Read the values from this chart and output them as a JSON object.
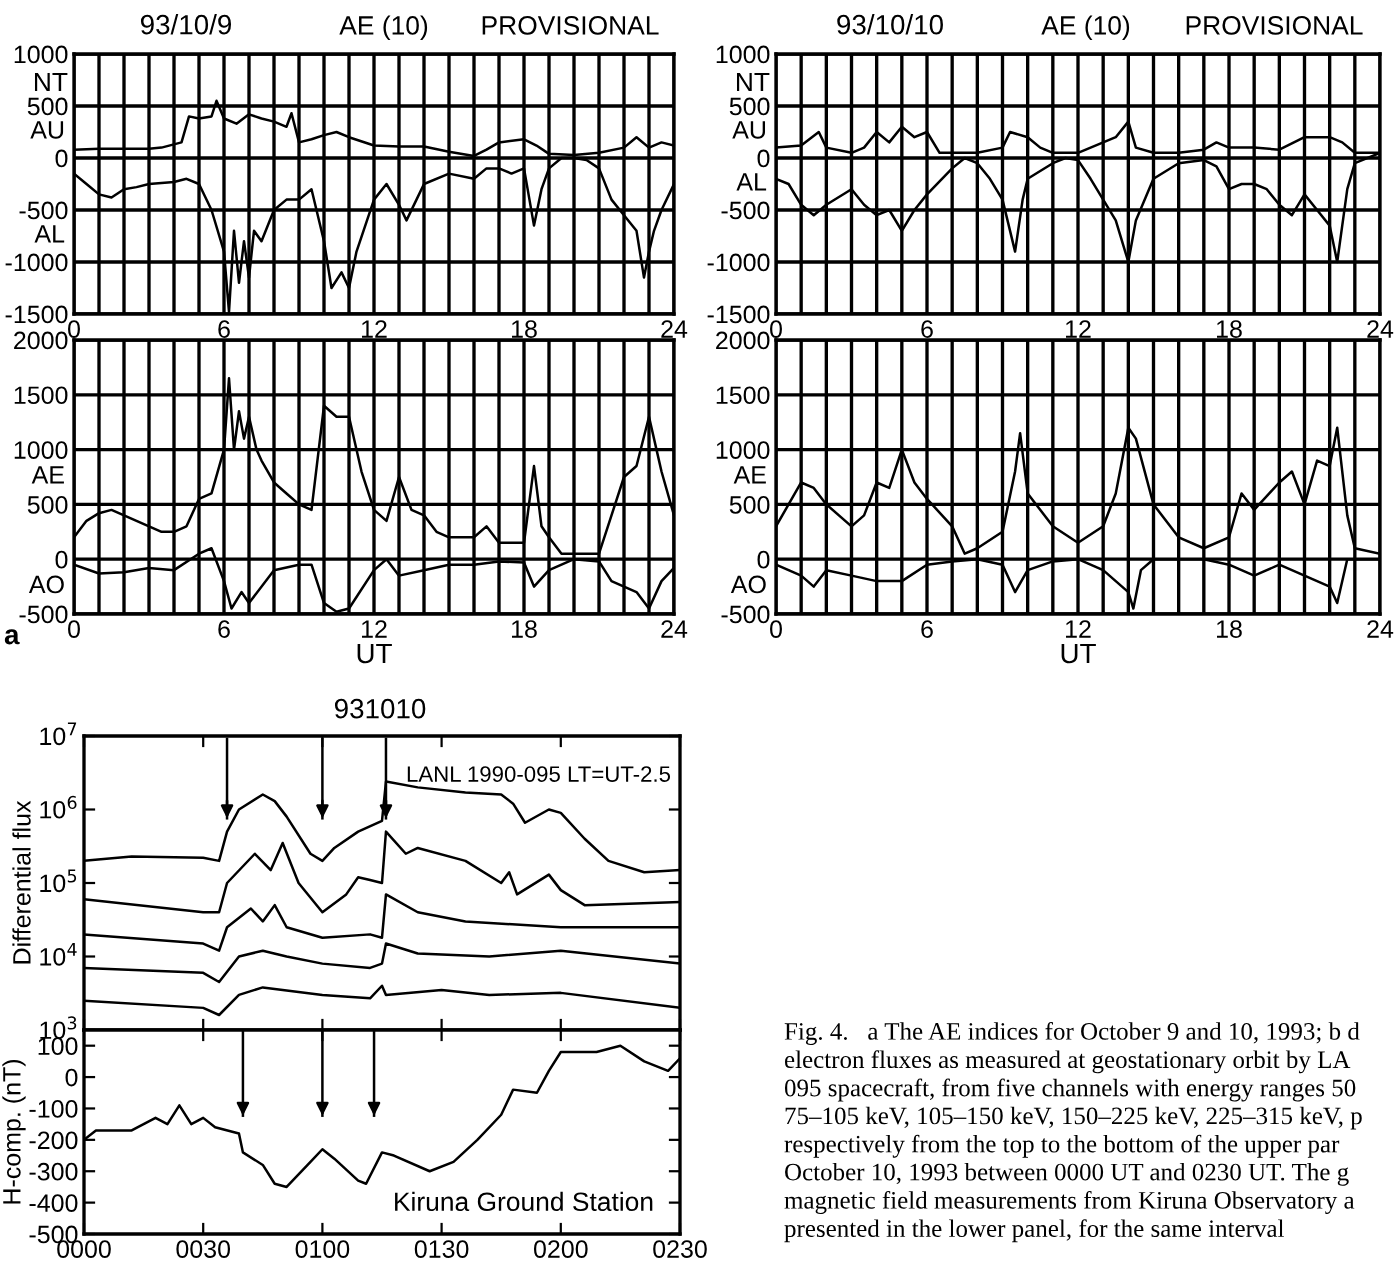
{
  "chart_data": [
    {
      "type": "line",
      "title": "93/10/9",
      "annotations": [
        "NT",
        "AE (10)",
        "PROVISIONAL"
      ],
      "xlim": [
        0,
        24
      ],
      "xticks": [
        0,
        {
          "value": 1,
          "label": null
        },
        {
          "value": 2,
          "label": null
        },
        {
          "value": 3,
          "label": null
        },
        {
          "value": 4,
          "label": null
        },
        {
          "value": 5,
          "label": null
        },
        6,
        {
          "value": 7,
          "label": null
        },
        {
          "value": 8,
          "label": null
        },
        {
          "value": 9,
          "label": null
        },
        {
          "value": 10,
          "label": null
        },
        {
          "value": 11,
          "label": null
        },
        12,
        {
          "value": 13,
          "label": null
        },
        {
          "value": 14,
          "label": null
        },
        {
          "value": 15,
          "label": null
        },
        {
          "value": 16,
          "label": null
        },
        {
          "value": 17,
          "label": null
        },
        18,
        {
          "value": 19,
          "label": null
        },
        {
          "value": 20,
          "label": null
        },
        {
          "value": 21,
          "label": null
        },
        {
          "value": 22,
          "label": null
        },
        {
          "value": 23,
          "label": null
        },
        24
      ],
      "ylim": [
        -1500,
        1000
      ],
      "yticks": [
        -1500,
        -1000,
        -500,
        0,
        500,
        1000
      ],
      "grid": true,
      "series": [
        {
          "name": "AU",
          "color": "#000000",
          "x": [
            0,
            1,
            2,
            3,
            3.5,
            4.3,
            4.6,
            5,
            5.5,
            5.7,
            6,
            6.5,
            7,
            7.5,
            8,
            8.5,
            8.7,
            9,
            9.5,
            10,
            10.5,
            11,
            12,
            13,
            14,
            15,
            16,
            16.5,
            17,
            18,
            18.5,
            19,
            20,
            21,
            22,
            22.5,
            23,
            23.5,
            24
          ],
          "values": [
            80,
            90,
            90,
            90,
            100,
            150,
            400,
            380,
            400,
            550,
            380,
            330,
            420,
            380,
            350,
            300,
            430,
            150,
            180,
            220,
            250,
            200,
            120,
            110,
            110,
            60,
            20,
            80,
            150,
            180,
            120,
            40,
            30,
            50,
            100,
            200,
            100,
            150,
            120
          ]
        },
        {
          "name": "AL",
          "color": "#000000",
          "x": [
            0,
            0.5,
            1,
            1.5,
            2,
            2.5,
            3,
            4,
            4.5,
            5,
            5.5,
            6,
            6.2,
            6.4,
            6.6,
            6.8,
            7,
            7.2,
            7.5,
            8,
            8.5,
            9,
            9.5,
            10,
            10.3,
            10.7,
            11,
            11.3,
            12,
            12.5,
            13,
            13.3,
            13.7,
            14,
            15,
            16,
            16.5,
            17,
            17.5,
            18,
            18.4,
            18.7,
            19,
            19.5,
            20,
            20.5,
            21,
            21.5,
            22,
            22.5,
            22.8,
            23,
            23.2,
            23.5,
            24
          ],
          "values": [
            -150,
            -250,
            -350,
            -380,
            -300,
            -280,
            -250,
            -230,
            -200,
            -250,
            -500,
            -900,
            -1480,
            -700,
            -1200,
            -800,
            -1150,
            -700,
            -800,
            -500,
            -400,
            -400,
            -300,
            -800,
            -1250,
            -1100,
            -1250,
            -900,
            -400,
            -250,
            -450,
            -600,
            -400,
            -250,
            -150,
            -200,
            -100,
            -100,
            -150,
            -100,
            -650,
            -300,
            -100,
            0,
            0,
            -20,
            -100,
            -400,
            -550,
            -700,
            -1150,
            -900,
            -700,
            -500,
            -250
          ]
        }
      ]
    },
    {
      "type": "line",
      "title": "93/10/10",
      "annotations": [
        "NT",
        "AE (10)",
        "PROVISIONAL"
      ],
      "xlim": [
        0,
        24
      ],
      "xticks": [
        0,
        {
          "value": 1,
          "label": null
        },
        {
          "value": 2,
          "label": null
        },
        {
          "value": 3,
          "label": null
        },
        {
          "value": 4,
          "label": null
        },
        {
          "value": 5,
          "label": null
        },
        6,
        {
          "value": 7,
          "label": null
        },
        {
          "value": 8,
          "label": null
        },
        {
          "value": 9,
          "label": null
        },
        {
          "value": 10,
          "label": null
        },
        {
          "value": 11,
          "label": null
        },
        12,
        {
          "value": 13,
          "label": null
        },
        {
          "value": 14,
          "label": null
        },
        {
          "value": 15,
          "label": null
        },
        {
          "value": 16,
          "label": null
        },
        {
          "value": 17,
          "label": null
        },
        18,
        {
          "value": 19,
          "label": null
        },
        {
          "value": 20,
          "label": null
        },
        {
          "value": 21,
          "label": null
        },
        {
          "value": 22,
          "label": null
        },
        {
          "value": 23,
          "label": null
        },
        24
      ],
      "ylim": [
        -1500,
        1000
      ],
      "yticks": [
        -1500,
        -1000,
        -500,
        0,
        500,
        1000
      ],
      "grid": true,
      "series": [
        {
          "name": "AU",
          "color": "#000000",
          "x": [
            0,
            1,
            1.7,
            2,
            3,
            3.5,
            4,
            4.5,
            5,
            5.5,
            6,
            6.5,
            7,
            8,
            9,
            9.3,
            10,
            10.5,
            11,
            12,
            13,
            13.5,
            14,
            14.3,
            15,
            16,
            17,
            17.5,
            18,
            19,
            20,
            21,
            22,
            22.5,
            23,
            24
          ],
          "values": [
            100,
            120,
            250,
            100,
            50,
            100,
            250,
            150,
            300,
            200,
            250,
            50,
            50,
            50,
            100,
            250,
            200,
            100,
            50,
            50,
            150,
            200,
            350,
            100,
            50,
            50,
            80,
            150,
            100,
            100,
            80,
            200,
            200,
            150,
            50,
            50
          ]
        },
        {
          "name": "AL",
          "color": "#000000",
          "x": [
            0,
            0.5,
            1,
            1.5,
            2,
            3,
            3.5,
            4,
            4.5,
            5,
            5.5,
            6,
            7,
            7.5,
            8,
            8.5,
            9,
            9.5,
            9.8,
            10,
            11,
            11.5,
            12,
            12.5,
            13,
            13.5,
            14,
            14.3,
            15,
            16,
            17,
            17.5,
            18,
            18.5,
            19,
            19.5,
            20,
            20.5,
            21,
            21.5,
            22,
            22.3,
            22.7,
            23,
            24
          ],
          "values": [
            -200,
            -250,
            -450,
            -550,
            -450,
            -300,
            -450,
            -550,
            -500,
            -700,
            -500,
            -350,
            -100,
            0,
            -50,
            -200,
            -400,
            -900,
            -400,
            -200,
            -50,
            0,
            -20,
            -200,
            -400,
            -600,
            -1000,
            -600,
            -200,
            -50,
            -20,
            -80,
            -300,
            -250,
            -250,
            -300,
            -450,
            -550,
            -350,
            -500,
            -650,
            -1000,
            -300,
            -50,
            50
          ]
        }
      ]
    },
    {
      "type": "line",
      "xlabel": "UT",
      "annotations": [
        "a"
      ],
      "xlim": [
        0,
        24
      ],
      "xticks": [
        0,
        {
          "value": 1,
          "label": null
        },
        {
          "value": 2,
          "label": null
        },
        {
          "value": 3,
          "label": null
        },
        {
          "value": 4,
          "label": null
        },
        {
          "value": 5,
          "label": null
        },
        6,
        {
          "value": 7,
          "label": null
        },
        {
          "value": 8,
          "label": null
        },
        {
          "value": 9,
          "label": null
        },
        {
          "value": 10,
          "label": null
        },
        {
          "value": 11,
          "label": null
        },
        12,
        {
          "value": 13,
          "label": null
        },
        {
          "value": 14,
          "label": null
        },
        {
          "value": 15,
          "label": null
        },
        {
          "value": 16,
          "label": null
        },
        {
          "value": 17,
          "label": null
        },
        18,
        {
          "value": 19,
          "label": null
        },
        {
          "value": 20,
          "label": null
        },
        {
          "value": 21,
          "label": null
        },
        {
          "value": 22,
          "label": null
        },
        {
          "value": 23,
          "label": null
        },
        24
      ],
      "ylim": [
        -500,
        2000
      ],
      "yticks": [
        -500,
        0,
        500,
        1000,
        1500,
        2000
      ],
      "grid": true,
      "series": [
        {
          "name": "AE",
          "color": "#000000",
          "x": [
            0,
            0.5,
            1,
            1.5,
            2,
            3,
            3.5,
            4,
            4.5,
            5,
            5.5,
            6,
            6.2,
            6.4,
            6.6,
            6.8,
            7,
            7.3,
            7.5,
            8,
            8.5,
            9,
            9.5,
            10,
            10.5,
            11,
            11.5,
            12,
            12.5,
            13,
            13.5,
            14,
            14.5,
            15,
            16,
            16.5,
            17,
            17.5,
            18,
            18.4,
            18.7,
            19,
            19.5,
            20,
            21,
            21.5,
            22,
            22.5,
            23,
            23.3,
            23.5,
            24
          ],
          "values": [
            200,
            350,
            420,
            450,
            400,
            300,
            250,
            250,
            300,
            550,
            600,
            1000,
            1650,
            1000,
            1350,
            1100,
            1300,
            1000,
            900,
            700,
            600,
            500,
            450,
            1400,
            1300,
            1300,
            800,
            450,
            350,
            750,
            450,
            400,
            250,
            200,
            200,
            300,
            150,
            150,
            150,
            850,
            300,
            200,
            50,
            50,
            50,
            400,
            750,
            850,
            1300,
            1000,
            800,
            400
          ]
        },
        {
          "name": "AO",
          "color": "#000000",
          "x": [
            0,
            1,
            2,
            3,
            4,
            5,
            5.5,
            6,
            6.3,
            6.7,
            7,
            8,
            9,
            9.5,
            10,
            10.5,
            11,
            12,
            12.5,
            13,
            14,
            15,
            16,
            17,
            18,
            18.4,
            19,
            20,
            21,
            21.5,
            22,
            22.5,
            23,
            23.5,
            24
          ],
          "values": [
            -50,
            -130,
            -120,
            -80,
            -100,
            50,
            100,
            -200,
            -450,
            -300,
            -400,
            -100,
            -50,
            -50,
            -400,
            -480,
            -450,
            -100,
            0,
            -150,
            -100,
            -50,
            -50,
            -20,
            -30,
            -250,
            -100,
            0,
            -20,
            -200,
            -250,
            -300,
            -450,
            -200,
            -80
          ]
        }
      ]
    },
    {
      "type": "line",
      "xlabel": "UT",
      "xlim": [
        0,
        24
      ],
      "xticks": [
        0,
        {
          "value": 1,
          "label": null
        },
        {
          "value": 2,
          "label": null
        },
        {
          "value": 3,
          "label": null
        },
        {
          "value": 4,
          "label": null
        },
        {
          "value": 5,
          "label": null
        },
        6,
        {
          "value": 7,
          "label": null
        },
        {
          "value": 8,
          "label": null
        },
        {
          "value": 9,
          "label": null
        },
        {
          "value": 10,
          "label": null
        },
        {
          "value": 11,
          "label": null
        },
        12,
        {
          "value": 13,
          "label": null
        },
        {
          "value": 14,
          "label": null
        },
        {
          "value": 15,
          "label": null
        },
        {
          "value": 16,
          "label": null
        },
        {
          "value": 17,
          "label": null
        },
        18,
        {
          "value": 19,
          "label": null
        },
        {
          "value": 20,
          "label": null
        },
        {
          "value": 21,
          "label": null
        },
        {
          "value": 22,
          "label": null
        },
        {
          "value": 23,
          "label": null
        },
        24
      ],
      "ylim": [
        -500,
        2000
      ],
      "yticks": [
        -500,
        0,
        500,
        1000,
        1500,
        2000
      ],
      "grid": true,
      "series": [
        {
          "name": "AE",
          "color": "#000000",
          "x": [
            0,
            0.5,
            1,
            1.5,
            2,
            3,
            3.5,
            4,
            4.5,
            5,
            5.5,
            6,
            7,
            7.5,
            8,
            9,
            9.5,
            9.7,
            10,
            11,
            12,
            13,
            13.5,
            14,
            14.3,
            15,
            16,
            17,
            18,
            18.5,
            19,
            20,
            20.5,
            21,
            21.5,
            22,
            22.3,
            22.7,
            23,
            24
          ],
          "values": [
            300,
            500,
            700,
            650,
            500,
            300,
            400,
            700,
            650,
            1000,
            700,
            550,
            300,
            50,
            100,
            250,
            800,
            1150,
            600,
            300,
            150,
            300,
            600,
            1200,
            1100,
            500,
            200,
            100,
            200,
            600,
            450,
            700,
            800,
            500,
            900,
            850,
            1200,
            400,
            100,
            50
          ]
        },
        {
          "name": "AO",
          "color": "#000000",
          "x": [
            0,
            1,
            1.5,
            2,
            3,
            4,
            5,
            6,
            7,
            8,
            9,
            9.5,
            10,
            11,
            12,
            13,
            14,
            14.2,
            14.5,
            15,
            17,
            18,
            19,
            20,
            21,
            22,
            22.3,
            22.7,
            24
          ],
          "values": [
            -50,
            -150,
            -250,
            -100,
            -150,
            -200,
            -200,
            -50,
            -20,
            0,
            -50,
            -300,
            -100,
            -20,
            0,
            -100,
            -300,
            -450,
            -100,
            0,
            0,
            -50,
            -150,
            -50,
            -150,
            -250,
            -400,
            0,
            0
          ]
        }
      ]
    },
    {
      "type": "line",
      "title": "931010",
      "ylabel": "Differential flux",
      "log": true,
      "tick_labels": "y",
      "annotations": [
        "LANL 1990-095 LT=UT-2.5"
      ],
      "ref_lines": [
        {
          "axis": "x",
          "value": "1993-10-10T00:36"
        },
        {
          "axis": "x",
          "value": "1993-10-10T01:00"
        },
        {
          "axis": "x",
          "value": "1993-10-10T01:16"
        }
      ],
      "xlim": [
        "1993-10-10T00:00",
        "1993-10-10T02:30"
      ],
      "xticks": [
        {
          "value": "1993-10-10T00:00",
          "label": null
        },
        {
          "value": "1993-10-10T00:30",
          "label": null
        },
        {
          "value": "1993-10-10T01:00",
          "label": null
        },
        {
          "value": "1993-10-10T01:30",
          "label": null
        },
        {
          "value": "1993-10-10T02:00",
          "label": null
        },
        {
          "value": "1993-10-10T02:30",
          "label": null
        }
      ],
      "ylim": [
        1000,
        10000000
      ],
      "yticks": [
        {
          "value": 1000,
          "label": "10$^{3}$"
        },
        {
          "value": 10000,
          "label": "10$^{4}$"
        },
        {
          "value": 100000,
          "label": "10$^{5}$"
        },
        {
          "value": 1000000,
          "label": "10$^{6}$"
        },
        {
          "value": 10000000,
          "label": "10$^{7}$"
        }
      ],
      "series": [
        {
          "color": "#000000",
          "x": [
            "1993-10-10T00:00",
            "1993-10-10T00:12",
            "1993-10-10T00:30",
            "1993-10-10T00:34",
            "1993-10-10T00:36",
            "1993-10-10T00:39",
            "1993-10-10T00:45",
            "1993-10-10T00:48",
            "1993-10-10T00:51",
            "1993-10-10T00:57",
            "1993-10-10T01:00",
            "1993-10-10T01:03",
            "1993-10-10T01:09",
            "1993-10-10T01:15",
            "1993-10-10T01:16",
            "1993-10-10T01:24",
            "1993-10-10T01:36",
            "1993-10-10T01:45",
            "1993-10-10T01:48",
            "1993-10-10T01:51",
            "1993-10-10T01:57",
            "1993-10-10T02:00",
            "1993-10-10T02:06",
            "1993-10-10T02:12",
            "1993-10-10T02:21",
            "1993-10-10T02:30"
          ],
          "values": [
            200000,
            230000,
            220000,
            200000,
            500000,
            1000000,
            1600000,
            1300000,
            800000,
            250000,
            200000,
            300000,
            500000,
            700000,
            2400000,
            2000000,
            1700000,
            1600000,
            1200000,
            660000,
            1000000,
            900000,
            400000,
            200000,
            140000,
            150000
          ]
        },
        {
          "color": "#000000",
          "x": [
            "1993-10-10T00:00",
            "1993-10-10T00:30",
            "1993-10-10T00:34",
            "1993-10-10T00:36",
            "1993-10-10T00:43",
            "1993-10-10T00:47",
            "1993-10-10T00:50",
            "1993-10-10T00:54",
            "1993-10-10T01:00",
            "1993-10-10T01:06",
            "1993-10-10T01:09",
            "1993-10-10T01:12",
            "1993-10-10T01:15",
            "1993-10-10T01:16",
            "1993-10-10T01:21",
            "1993-10-10T01:24",
            "1993-10-10T01:36",
            "1993-10-10T01:45",
            "1993-10-10T01:47",
            "1993-10-10T01:49",
            "1993-10-10T01:57",
            "1993-10-10T02:00",
            "1993-10-10T02:06",
            "1993-10-10T02:30"
          ],
          "values": [
            60000,
            40000,
            40000,
            100000,
            250000,
            150000,
            350000,
            100000,
            40000,
            70000,
            120000,
            110000,
            100000,
            500000,
            250000,
            300000,
            200000,
            100000,
            140000,
            70000,
            130000,
            80000,
            50000,
            55000
          ]
        },
        {
          "color": "#000000",
          "x": [
            "1993-10-10T00:00",
            "1993-10-10T00:30",
            "1993-10-10T00:34",
            "1993-10-10T00:36",
            "1993-10-10T00:42",
            "1993-10-10T00:45",
            "1993-10-10T00:48",
            "1993-10-10T00:51",
            "1993-10-10T01:00",
            "1993-10-10T01:12",
            "1993-10-10T01:15",
            "1993-10-10T01:16",
            "1993-10-10T01:24",
            "1993-10-10T01:36",
            "1993-10-10T02:00",
            "1993-10-10T02:30"
          ],
          "values": [
            20000,
            15000,
            12000,
            25000,
            45000,
            30000,
            50000,
            25000,
            18000,
            20000,
            18000,
            70000,
            40000,
            30000,
            25000,
            25000
          ]
        },
        {
          "color": "#000000",
          "x": [
            "1993-10-10T00:00",
            "1993-10-10T00:30",
            "1993-10-10T00:34",
            "1993-10-10T00:39",
            "1993-10-10T00:45",
            "1993-10-10T00:51",
            "1993-10-10T01:00",
            "1993-10-10T01:12",
            "1993-10-10T01:15",
            "1993-10-10T01:16",
            "1993-10-10T01:24",
            "1993-10-10T01:42",
            "1993-10-10T02:00",
            "1993-10-10T02:30"
          ],
          "values": [
            7000,
            6000,
            4500,
            10000,
            12000,
            10000,
            8000,
            7000,
            8000,
            15000,
            11000,
            10000,
            12000,
            8000
          ]
        },
        {
          "color": "#000000",
          "x": [
            "1993-10-10T00:00",
            "1993-10-10T00:30",
            "1993-10-10T00:34",
            "1993-10-10T00:39",
            "1993-10-10T00:45",
            "1993-10-10T01:00",
            "1993-10-10T01:12",
            "1993-10-10T01:15",
            "1993-10-10T01:16",
            "1993-10-10T01:30",
            "1993-10-10T01:42",
            "1993-10-10T02:00",
            "1993-10-10T02:30"
          ],
          "values": [
            2500,
            2000,
            1600,
            3000,
            3800,
            3000,
            2700,
            4000,
            3000,
            3500,
            3000,
            3200,
            2000
          ]
        }
      ]
    },
    {
      "type": "line",
      "ylabel": "H-comp. (nT)",
      "annotations": [
        "Kiruna Ground Station",
        "Fig. 4.   a The AE indices for October 9 and 10, 1993; b d\nelectron fluxes as measured at geostationary orbit by LA\n095 spacecraft, from five channels with energy ranges 50\n75–105 keV, 105–150 keV, 150–225 keV, 225–315 keV, p\nrespectively from the top to the bottom of the upper par\nOctober 10, 1993 between 0000 UT and 0230 UT. The g\nmagnetic field measurements from Kiruna Observatory a\npresented in the lower panel, for the same interval"
      ],
      "ref_lines": [
        {
          "axis": "x",
          "value": "1993-10-10T00:40"
        },
        {
          "axis": "x",
          "value": "1993-10-10T01:00"
        },
        {
          "axis": "x",
          "value": "1993-10-10T01:13"
        }
      ],
      "xlim": [
        "1993-10-10T00:00",
        "1993-10-10T02:30"
      ],
      "xticks": [
        {
          "value": "1993-10-10T00:00",
          "label": "0000"
        },
        {
          "value": "1993-10-10T00:30",
          "label": "0030"
        },
        {
          "value": "1993-10-10T01:00",
          "label": "0100"
        },
        {
          "value": "1993-10-10T01:30",
          "label": "0130"
        },
        {
          "value": "1993-10-10T02:00",
          "label": "0200"
        },
        {
          "value": "1993-10-10T02:30",
          "label": "0230"
        }
      ],
      "ylim": [
        -500,
        150
      ],
      "yticks": [
        -500,
        -400,
        -300,
        -200,
        -100,
        0,
        100
      ],
      "series": [
        {
          "color": "#000000",
          "x": [
            "1993-10-10T00:00",
            "1993-10-10T00:03",
            "1993-10-10T00:12",
            "1993-10-10T00:18",
            "1993-10-10T00:21",
            "1993-10-10T00:24",
            "1993-10-10T00:27",
            "1993-10-10T00:30",
            "1993-10-10T00:33",
            "1993-10-10T00:39",
            "1993-10-10T00:40",
            "1993-10-10T00:45",
            "1993-10-10T00:48",
            "1993-10-10T00:51",
            "1993-10-10T00:57",
            "1993-10-10T01:00",
            "1993-10-10T01:03",
            "1993-10-10T01:09",
            "1993-10-10T01:11",
            "1993-10-10T01:15",
            "1993-10-10T01:18",
            "1993-10-10T01:27",
            "1993-10-10T01:33",
            "1993-10-10T01:39",
            "1993-10-10T01:45",
            "1993-10-10T01:48",
            "1993-10-10T01:54",
            "1993-10-10T01:57",
            "1993-10-10T02:00",
            "1993-10-10T02:09",
            "1993-10-10T02:15",
            "1993-10-10T02:21",
            "1993-10-10T02:27",
            "1993-10-10T02:30"
          ],
          "values": [
            -200,
            -170,
            -170,
            -130,
            -150,
            -90,
            -150,
            -130,
            -160,
            -180,
            -240,
            -280,
            -340,
            -350,
            -270,
            -230,
            -260,
            -330,
            -340,
            -240,
            -250,
            -300,
            -270,
            -200,
            -120,
            -40,
            -50,
            20,
            80,
            80,
            100,
            50,
            20,
            60
          ]
        }
      ]
    }
  ]
}
